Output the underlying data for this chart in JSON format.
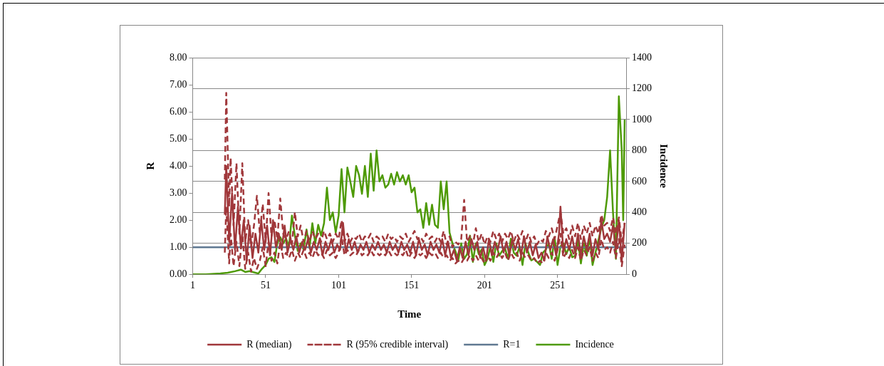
{
  "chart_data": {
    "type": "line",
    "xlabel": "Time",
    "ylabel": "R",
    "y2label": "Incidence",
    "xlim": [
      1,
      298
    ],
    "xticks": [
      1,
      51,
      101,
      151,
      201,
      251
    ],
    "ylim": [
      0,
      8
    ],
    "yticks": [
      {
        "value": 0,
        "label": "0.00"
      },
      {
        "value": 1,
        "label": "1.00"
      },
      {
        "value": 2,
        "label": "2.00"
      },
      {
        "value": 3,
        "label": "3.00"
      },
      {
        "value": 4,
        "label": "4.00"
      },
      {
        "value": 5,
        "label": "5.00"
      },
      {
        "value": 6,
        "label": "6.00"
      },
      {
        "value": 7,
        "label": "7.00"
      },
      {
        "value": 8,
        "label": "8.00"
      }
    ],
    "y2lim": [
      0,
      1400
    ],
    "y2ticks": [
      0,
      200,
      400,
      600,
      800,
      1000,
      1200,
      1400
    ],
    "grid": true,
    "legend": "bottom",
    "marker": "none",
    "ref_lines": [
      {
        "axis": "y",
        "value": 1,
        "label": "R=1",
        "color": "#5f7891"
      }
    ],
    "series": [
      {
        "name": "R (median)",
        "color": "#a0373a",
        "line_style": "solid",
        "x": [
          23,
          24,
          26,
          28,
          30,
          32,
          34,
          36,
          38,
          40,
          42,
          44,
          46,
          48,
          50,
          52,
          54,
          56,
          58,
          60,
          62,
          64,
          66,
          68,
          70,
          72,
          74,
          76,
          78,
          80,
          82,
          84,
          86,
          88,
          90,
          92,
          94,
          96,
          98,
          100,
          102,
          104,
          106,
          108,
          110,
          112,
          114,
          116,
          118,
          120,
          122,
          124,
          126,
          128,
          130,
          132,
          134,
          136,
          138,
          140,
          142,
          144,
          146,
          148,
          150,
          152,
          154,
          156,
          158,
          160,
          162,
          164,
          166,
          168,
          170,
          172,
          174,
          176,
          178,
          180,
          182,
          184,
          186,
          188,
          190,
          192,
          194,
          196,
          198,
          200,
          202,
          204,
          206,
          208,
          210,
          212,
          214,
          216,
          218,
          220,
          222,
          224,
          226,
          228,
          230,
          232,
          234,
          236,
          238,
          240,
          242,
          244,
          246,
          248,
          250,
          252,
          253,
          255,
          257,
          259,
          261,
          263,
          265,
          267,
          269,
          271,
          273,
          275,
          277,
          279,
          281,
          283,
          285,
          287,
          289,
          291,
          293,
          295,
          297
        ],
        "values": [
          2.2,
          4.0,
          1.2,
          3.0,
          0.9,
          2.5,
          1.0,
          2.0,
          0.5,
          1.8,
          0.6,
          1.5,
          0.8,
          2.0,
          0.9,
          1.8,
          0.7,
          2.0,
          1.0,
          1.5,
          0.9,
          1.8,
          0.8,
          1.3,
          0.9,
          1.4,
          0.8,
          1.2,
          0.9,
          1.3,
          0.8,
          1.2,
          0.9,
          1.3,
          0.7,
          1.2,
          0.9,
          1.3,
          0.8,
          1.1,
          0.9,
          1.9,
          0.8,
          1.3,
          0.9,
          1.2,
          0.8,
          1.1,
          0.9,
          1.2,
          0.8,
          1.1,
          0.9,
          1.2,
          0.9,
          1.1,
          0.8,
          1.2,
          0.9,
          1.1,
          0.8,
          1.2,
          0.9,
          1.1,
          0.8,
          1.2,
          0.7,
          1.3,
          0.9,
          1.1,
          0.7,
          1.2,
          0.9,
          1.1,
          0.8,
          1.3,
          0.7,
          1.2,
          0.6,
          0.9,
          0.5,
          1.0,
          0.6,
          1.2,
          0.7,
          1.3,
          0.9,
          1.2,
          0.6,
          1.0,
          0.5,
          1.3,
          0.7,
          1.2,
          0.9,
          1.4,
          0.8,
          1.2,
          0.7,
          1.3,
          0.9,
          1.3,
          0.7,
          1.4,
          0.8,
          1.2,
          0.7,
          1.1,
          0.6,
          0.8,
          0.5,
          1.4,
          0.9,
          1.3,
          0.7,
          1.5,
          2.5,
          0.8,
          1.3,
          0.9,
          1.4,
          0.8,
          1.5,
          0.7,
          1.4,
          0.9,
          1.5,
          0.7,
          1.3,
          0.9,
          2.0,
          1.3,
          1.5,
          1.2,
          1.8,
          0.9,
          2.0,
          0.5,
          1.9
        ]
      },
      {
        "name": "R (95% credible interval)",
        "color": "#a0373a",
        "line_style": "dashed",
        "x": [
          23,
          24,
          26,
          27,
          29,
          31,
          33,
          35,
          37,
          39,
          41,
          43,
          45,
          47,
          49,
          51,
          53,
          55,
          57,
          59,
          61,
          63,
          65,
          67,
          69,
          71,
          73,
          75,
          77,
          79,
          81,
          83,
          85,
          87,
          89,
          91,
          93,
          95,
          97,
          99,
          101,
          103,
          105,
          107,
          109,
          111,
          113,
          115,
          117,
          119,
          121,
          123,
          125,
          127,
          129,
          131,
          133,
          135,
          137,
          139,
          141,
          143,
          145,
          147,
          149,
          151,
          153,
          155,
          157,
          159,
          161,
          163,
          165,
          167,
          169,
          171,
          173,
          175,
          177,
          179,
          181,
          183,
          185,
          187,
          189,
          191,
          193,
          195,
          197,
          199,
          201,
          203,
          205,
          207,
          209,
          211,
          213,
          215,
          217,
          219,
          221,
          223,
          225,
          227,
          229,
          231,
          233,
          235,
          237,
          239,
          241,
          243,
          245,
          247,
          249,
          251,
          253,
          255,
          257,
          259,
          261,
          263,
          265,
          267,
          269,
          271,
          273,
          275,
          277,
          279,
          281,
          283,
          285,
          287,
          289,
          291,
          293,
          295,
          297
        ],
        "values": [
          3.5,
          6.7,
          2.5,
          4.3,
          1.8,
          4.1,
          1.5,
          4.1,
          1.2,
          2.0,
          1.0,
          1.8,
          2.9,
          1.5,
          2.6,
          1.2,
          3.0,
          1.4,
          2.0,
          1.3,
          2.8,
          1.5,
          1.3,
          1.6,
          1.1,
          2.3,
          1.4,
          1.8,
          1.2,
          1.6,
          1.2,
          1.6,
          1.3,
          1.5,
          1.2,
          1.6,
          1.3,
          1.5,
          1.2,
          1.5,
          1.3,
          2.0,
          1.2,
          1.5,
          1.2,
          1.4,
          1.3,
          1.5,
          1.2,
          1.4,
          1.3,
          1.5,
          1.2,
          1.4,
          1.3,
          1.4,
          1.2,
          1.5,
          1.3,
          1.4,
          1.2,
          1.4,
          1.3,
          1.5,
          1.2,
          1.4,
          1.6,
          1.3,
          1.4,
          1.2,
          1.5,
          1.3,
          1.4,
          1.2,
          1.4,
          1.2,
          1.6,
          1.1,
          1.4,
          1.0,
          1.2,
          1.1,
          1.3,
          2.75,
          1.2,
          1.4,
          1.1,
          1.7,
          1.2,
          1.5,
          1.1,
          1.4,
          1.2,
          1.6,
          1.3,
          1.5,
          1.2,
          1.5,
          1.3,
          1.6,
          1.2,
          1.5,
          1.3,
          1.6,
          1.2,
          1.5,
          1.2,
          1.4,
          1.1,
          1.3,
          1.2,
          1.6,
          1.4,
          1.7,
          1.3,
          1.8,
          2.3,
          1.5,
          1.7,
          1.3,
          1.8,
          1.4,
          1.9,
          1.3,
          1.8,
          1.5,
          1.9,
          1.4,
          1.8,
          1.5,
          2.2,
          1.8,
          1.9,
          1.6,
          2.1,
          1.5,
          2.1,
          1.2,
          1.9
        ]
      },
      {
        "color": "#a0373a",
        "line_style": "dashed",
        "x": [
          23,
          24,
          26,
          27,
          29,
          31,
          33,
          35,
          37,
          39,
          41,
          43,
          45,
          47,
          49,
          51,
          53,
          55,
          57,
          59,
          61,
          63,
          65,
          67,
          69,
          71,
          73,
          75,
          77,
          79,
          81,
          83,
          85,
          87,
          89,
          91,
          93,
          95,
          97,
          99,
          101,
          103,
          105,
          107,
          109,
          111,
          113,
          115,
          117,
          119,
          121,
          123,
          125,
          127,
          129,
          131,
          133,
          135,
          137,
          139,
          141,
          143,
          145,
          147,
          149,
          151,
          153,
          155,
          157,
          159,
          161,
          163,
          165,
          167,
          169,
          171,
          173,
          175,
          177,
          179,
          181,
          183,
          185,
          187,
          189,
          191,
          193,
          195,
          197,
          199,
          201,
          203,
          205,
          207,
          209,
          211,
          213,
          215,
          217,
          219,
          221,
          223,
          225,
          227,
          229,
          231,
          233,
          235,
          237,
          239,
          241,
          243,
          245,
          247,
          249,
          251,
          253,
          255,
          257,
          259,
          261,
          263,
          265,
          267,
          269,
          271,
          273,
          275,
          277,
          279,
          281,
          283,
          285,
          287,
          289,
          291,
          293,
          295,
          297
        ],
        "values": [
          0.8,
          2.5,
          0.4,
          1.5,
          0.3,
          1.2,
          0.3,
          1.5,
          0.2,
          0.8,
          0.1,
          0.6,
          0.2,
          0.5,
          1.0,
          0.3,
          1.2,
          0.5,
          0.8,
          0.4,
          1.2,
          0.6,
          0.8,
          0.6,
          0.9,
          0.5,
          0.8,
          0.6,
          0.9,
          0.6,
          0.8,
          0.6,
          0.9,
          0.7,
          0.8,
          0.6,
          0.9,
          0.7,
          0.8,
          0.6,
          0.8,
          1.4,
          0.7,
          0.9,
          0.7,
          0.8,
          0.7,
          0.9,
          0.7,
          0.8,
          0.7,
          0.9,
          0.7,
          0.8,
          0.7,
          0.8,
          0.7,
          0.9,
          0.7,
          0.8,
          0.7,
          0.8,
          0.7,
          0.9,
          0.6,
          0.8,
          0.6,
          0.8,
          0.7,
          0.8,
          0.6,
          0.8,
          0.7,
          0.8,
          0.6,
          0.8,
          0.6,
          0.7,
          0.5,
          0.6,
          0.4,
          0.5,
          0.4,
          0.6,
          0.5,
          0.7,
          0.5,
          0.7,
          0.5,
          0.6,
          0.4,
          0.7,
          0.5,
          0.8,
          0.6,
          0.8,
          0.6,
          0.8,
          0.5,
          0.8,
          0.6,
          0.8,
          0.5,
          0.8,
          0.6,
          0.7,
          0.5,
          0.6,
          0.4,
          0.5,
          0.4,
          0.8,
          0.6,
          0.8,
          0.5,
          0.9,
          1.5,
          0.6,
          0.8,
          0.6,
          0.9,
          0.6,
          1.0,
          0.5,
          0.9,
          0.7,
          1.0,
          0.5,
          0.8,
          0.6,
          1.3,
          0.9,
          1.0,
          0.8,
          1.2,
          0.6,
          1.3,
          0.3,
          1.1
        ]
      },
      {
        "name": "Incidence",
        "color": "#4e9a06",
        "line_style": "solid",
        "axis": "y2",
        "x": [
          1,
          10,
          20,
          25,
          30,
          34,
          37,
          40,
          44,
          46,
          48,
          51,
          53,
          55,
          57,
          59,
          61,
          63,
          65,
          67,
          69,
          71,
          73,
          75,
          77,
          79,
          81,
          83,
          85,
          87,
          89,
          91,
          93,
          95,
          97,
          99,
          101,
          103,
          105,
          107,
          109,
          111,
          113,
          115,
          117,
          119,
          121,
          123,
          125,
          127,
          129,
          131,
          133,
          135,
          137,
          139,
          141,
          143,
          145,
          147,
          149,
          151,
          153,
          155,
          157,
          159,
          161,
          163,
          165,
          167,
          169,
          171,
          173,
          175,
          177,
          179,
          181,
          183,
          185,
          187,
          189,
          191,
          193,
          195,
          197,
          199,
          201,
          203,
          205,
          207,
          209,
          211,
          213,
          215,
          217,
          219,
          221,
          223,
          225,
          227,
          229,
          231,
          233,
          235,
          237,
          239,
          241,
          243,
          245,
          247,
          249,
          251,
          253,
          255,
          257,
          259,
          261,
          263,
          265,
          267,
          269,
          271,
          273,
          275,
          277,
          279,
          281,
          283,
          285,
          287,
          289,
          291,
          293,
          295,
          296,
          297
        ],
        "values": [
          0,
          0,
          5,
          10,
          20,
          30,
          15,
          20,
          10,
          5,
          30,
          60,
          100,
          110,
          80,
          200,
          240,
          200,
          230,
          180,
          380,
          250,
          150,
          200,
          160,
          290,
          170,
          330,
          200,
          320,
          250,
          330,
          560,
          350,
          400,
          270,
          380,
          680,
          400,
          690,
          600,
          500,
          700,
          640,
          520,
          700,
          500,
          780,
          540,
          800,
          600,
          640,
          560,
          580,
          650,
          580,
          660,
          600,
          640,
          580,
          640,
          530,
          560,
          400,
          420,
          300,
          460,
          320,
          450,
          320,
          300,
          600,
          420,
          600,
          270,
          200,
          150,
          90,
          200,
          100,
          130,
          250,
          80,
          200,
          130,
          160,
          60,
          100,
          180,
          80,
          200,
          120,
          150,
          170,
          100,
          230,
          140,
          120,
          180,
          60,
          200,
          140,
          90,
          100,
          80,
          60,
          140,
          160,
          200,
          100,
          240,
          60,
          180,
          200,
          130,
          180,
          110,
          120,
          220,
          70,
          200,
          120,
          240,
          60,
          140,
          220,
          300,
          350,
          500,
          800,
          400,
          100,
          1150,
          800,
          350,
          1000
        ]
      }
    ]
  }
}
